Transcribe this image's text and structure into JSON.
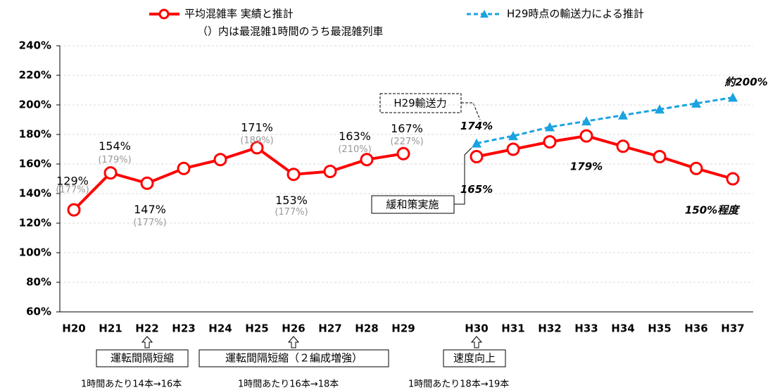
{
  "chart_data": {
    "type": "line",
    "legend_note": "（）内は最混雑1時間のうち最混雑列車",
    "categories": [
      "H20",
      "H21",
      "H22",
      "H23",
      "H24",
      "H25",
      "H26",
      "H27",
      "H28",
      "H29",
      null,
      "H30",
      "H31",
      "H32",
      "H33",
      "H34",
      "H35",
      "H36",
      "H37"
    ],
    "series": [
      {
        "name": "平均混雑率  実績と推計",
        "color": "#ff0000",
        "marker": "circle",
        "values": [
          129,
          154,
          147,
          157,
          163,
          171,
          153,
          155,
          163,
          167,
          null,
          165,
          170,
          175,
          179,
          172,
          165,
          157,
          150
        ],
        "value_labels": [
          "129%",
          "154%",
          "147%",
          null,
          null,
          "171%",
          "153%",
          null,
          "163%",
          "167%",
          null,
          "165%",
          null,
          null,
          "179%",
          null,
          null,
          null,
          "150%程度"
        ],
        "sub_labels": [
          "(177%)",
          "(179%)",
          "(177%)",
          null,
          null,
          "(189%)",
          "(177%)",
          null,
          "(210%)",
          "(227%)",
          null,
          null,
          null,
          null,
          null,
          null,
          null,
          null,
          null
        ]
      },
      {
        "name": "H29時点の輸送力による推計",
        "color": "#1aa3e0",
        "marker": "triangle",
        "dashed": true,
        "values": [
          null,
          null,
          null,
          null,
          null,
          null,
          null,
          null,
          null,
          null,
          null,
          174,
          179,
          185,
          189,
          193,
          197,
          201,
          205
        ],
        "value_labels": [
          null,
          null,
          null,
          null,
          null,
          null,
          null,
          null,
          null,
          null,
          null,
          "174%",
          null,
          null,
          null,
          null,
          null,
          null,
          null
        ]
      }
    ],
    "ylim": [
      60,
      240
    ],
    "yticks": [
      {
        "value": 60,
        "label": "60%"
      },
      {
        "value": 80,
        "label": "80%"
      },
      {
        "value": 100,
        "label": "100%"
      },
      {
        "value": 120,
        "label": "120%"
      },
      {
        "value": 140,
        "label": "140%"
      },
      {
        "value": 160,
        "label": "160%"
      },
      {
        "value": 180,
        "label": "180%"
      },
      {
        "value": 200,
        "label": "200%"
      },
      {
        "value": 220,
        "label": "220%"
      },
      {
        "value": 240,
        "label": "240%"
      }
    ],
    "grid": true,
    "annotations": {
      "blue_end": "約200%",
      "capacity_box": "H29輸送力",
      "measures_box": "緩和策実施",
      "events": [
        {
          "label": "運転間隔短縮",
          "note": "1時間あたり14本→16本"
        },
        {
          "label": "運転間隔短縮（２編成増強）",
          "note": "1時間あたり16本→18本"
        },
        {
          "label": "速度向上",
          "note": "1時間あたり18本→19本"
        }
      ]
    }
  }
}
